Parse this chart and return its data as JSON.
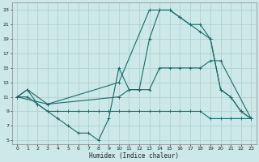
{
  "xlabel": "Humidex (Indice chaleur)",
  "bg_color": "#cce8e8",
  "grid_color": "#aacece",
  "line_color": "#1a6b6b",
  "xlim": [
    -0.5,
    23.5
  ],
  "ylim": [
    4.5,
    24
  ],
  "xticks": [
    0,
    1,
    2,
    3,
    4,
    5,
    6,
    7,
    8,
    9,
    10,
    11,
    12,
    13,
    14,
    15,
    16,
    17,
    18,
    19,
    20,
    21,
    22,
    23
  ],
  "yticks": [
    5,
    7,
    9,
    11,
    13,
    15,
    17,
    19,
    21,
    23
  ],
  "line1_x": [
    0,
    1,
    2,
    3,
    4,
    5,
    6,
    7,
    8,
    9,
    10,
    11,
    12,
    13,
    14,
    15,
    16,
    17,
    18,
    19,
    20,
    21,
    22,
    23
  ],
  "line1_y": [
    11,
    12,
    10,
    9,
    8,
    7,
    6,
    6,
    5,
    8,
    15,
    12,
    12,
    19,
    23,
    23,
    22,
    21,
    20,
    19,
    12,
    11,
    9,
    8
  ],
  "line2_x": [
    0,
    1,
    2,
    3,
    4,
    5,
    6,
    7,
    8,
    9,
    10,
    11,
    12,
    13,
    14,
    15,
    16,
    17,
    18,
    19,
    20,
    21,
    22,
    23
  ],
  "line2_y": [
    11,
    11,
    10,
    9,
    9,
    9,
    9,
    9,
    9,
    9,
    9,
    9,
    9,
    9,
    9,
    9,
    9,
    9,
    9,
    8,
    8,
    8,
    8,
    8
  ],
  "line3_x": [
    0,
    1,
    3,
    10,
    13,
    14,
    15,
    16,
    17,
    18,
    19,
    20,
    21,
    22,
    23
  ],
  "line3_y": [
    11,
    12,
    10,
    13,
    23,
    23,
    23,
    22,
    21,
    21,
    19,
    12,
    11,
    9,
    8
  ],
  "line4_x": [
    0,
    3,
    10,
    11,
    12,
    13,
    14,
    15,
    16,
    17,
    18,
    19,
    20,
    23
  ],
  "line4_y": [
    11,
    10,
    11,
    12,
    12,
    12,
    15,
    15,
    15,
    15,
    15,
    16,
    16,
    8
  ]
}
